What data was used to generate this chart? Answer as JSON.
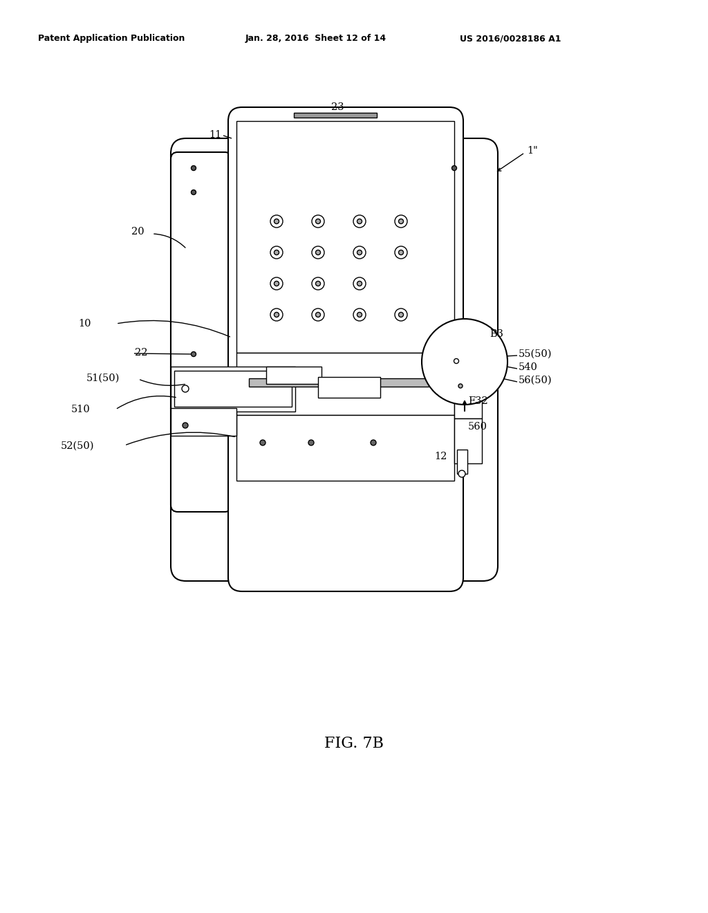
{
  "header_left": "Patent Application Publication",
  "header_mid": "Jan. 28, 2016  Sheet 12 of 14",
  "header_right": "US 2016/0028186 A1",
  "figure_label": "FIG. 7B",
  "bg": "#ffffff",
  "lc": "#000000",
  "labels": {
    "1quote": "1\"",
    "11": "11",
    "12": "12",
    "20": "20",
    "22": "22",
    "23": "23",
    "10": "10",
    "51_50": "51(50)",
    "52_50": "52(50)",
    "510": "510",
    "B3": "B3",
    "55_50": "55(50)",
    "540": "540",
    "56_50": "56(50)",
    "F32": "F32",
    "560": "560"
  }
}
